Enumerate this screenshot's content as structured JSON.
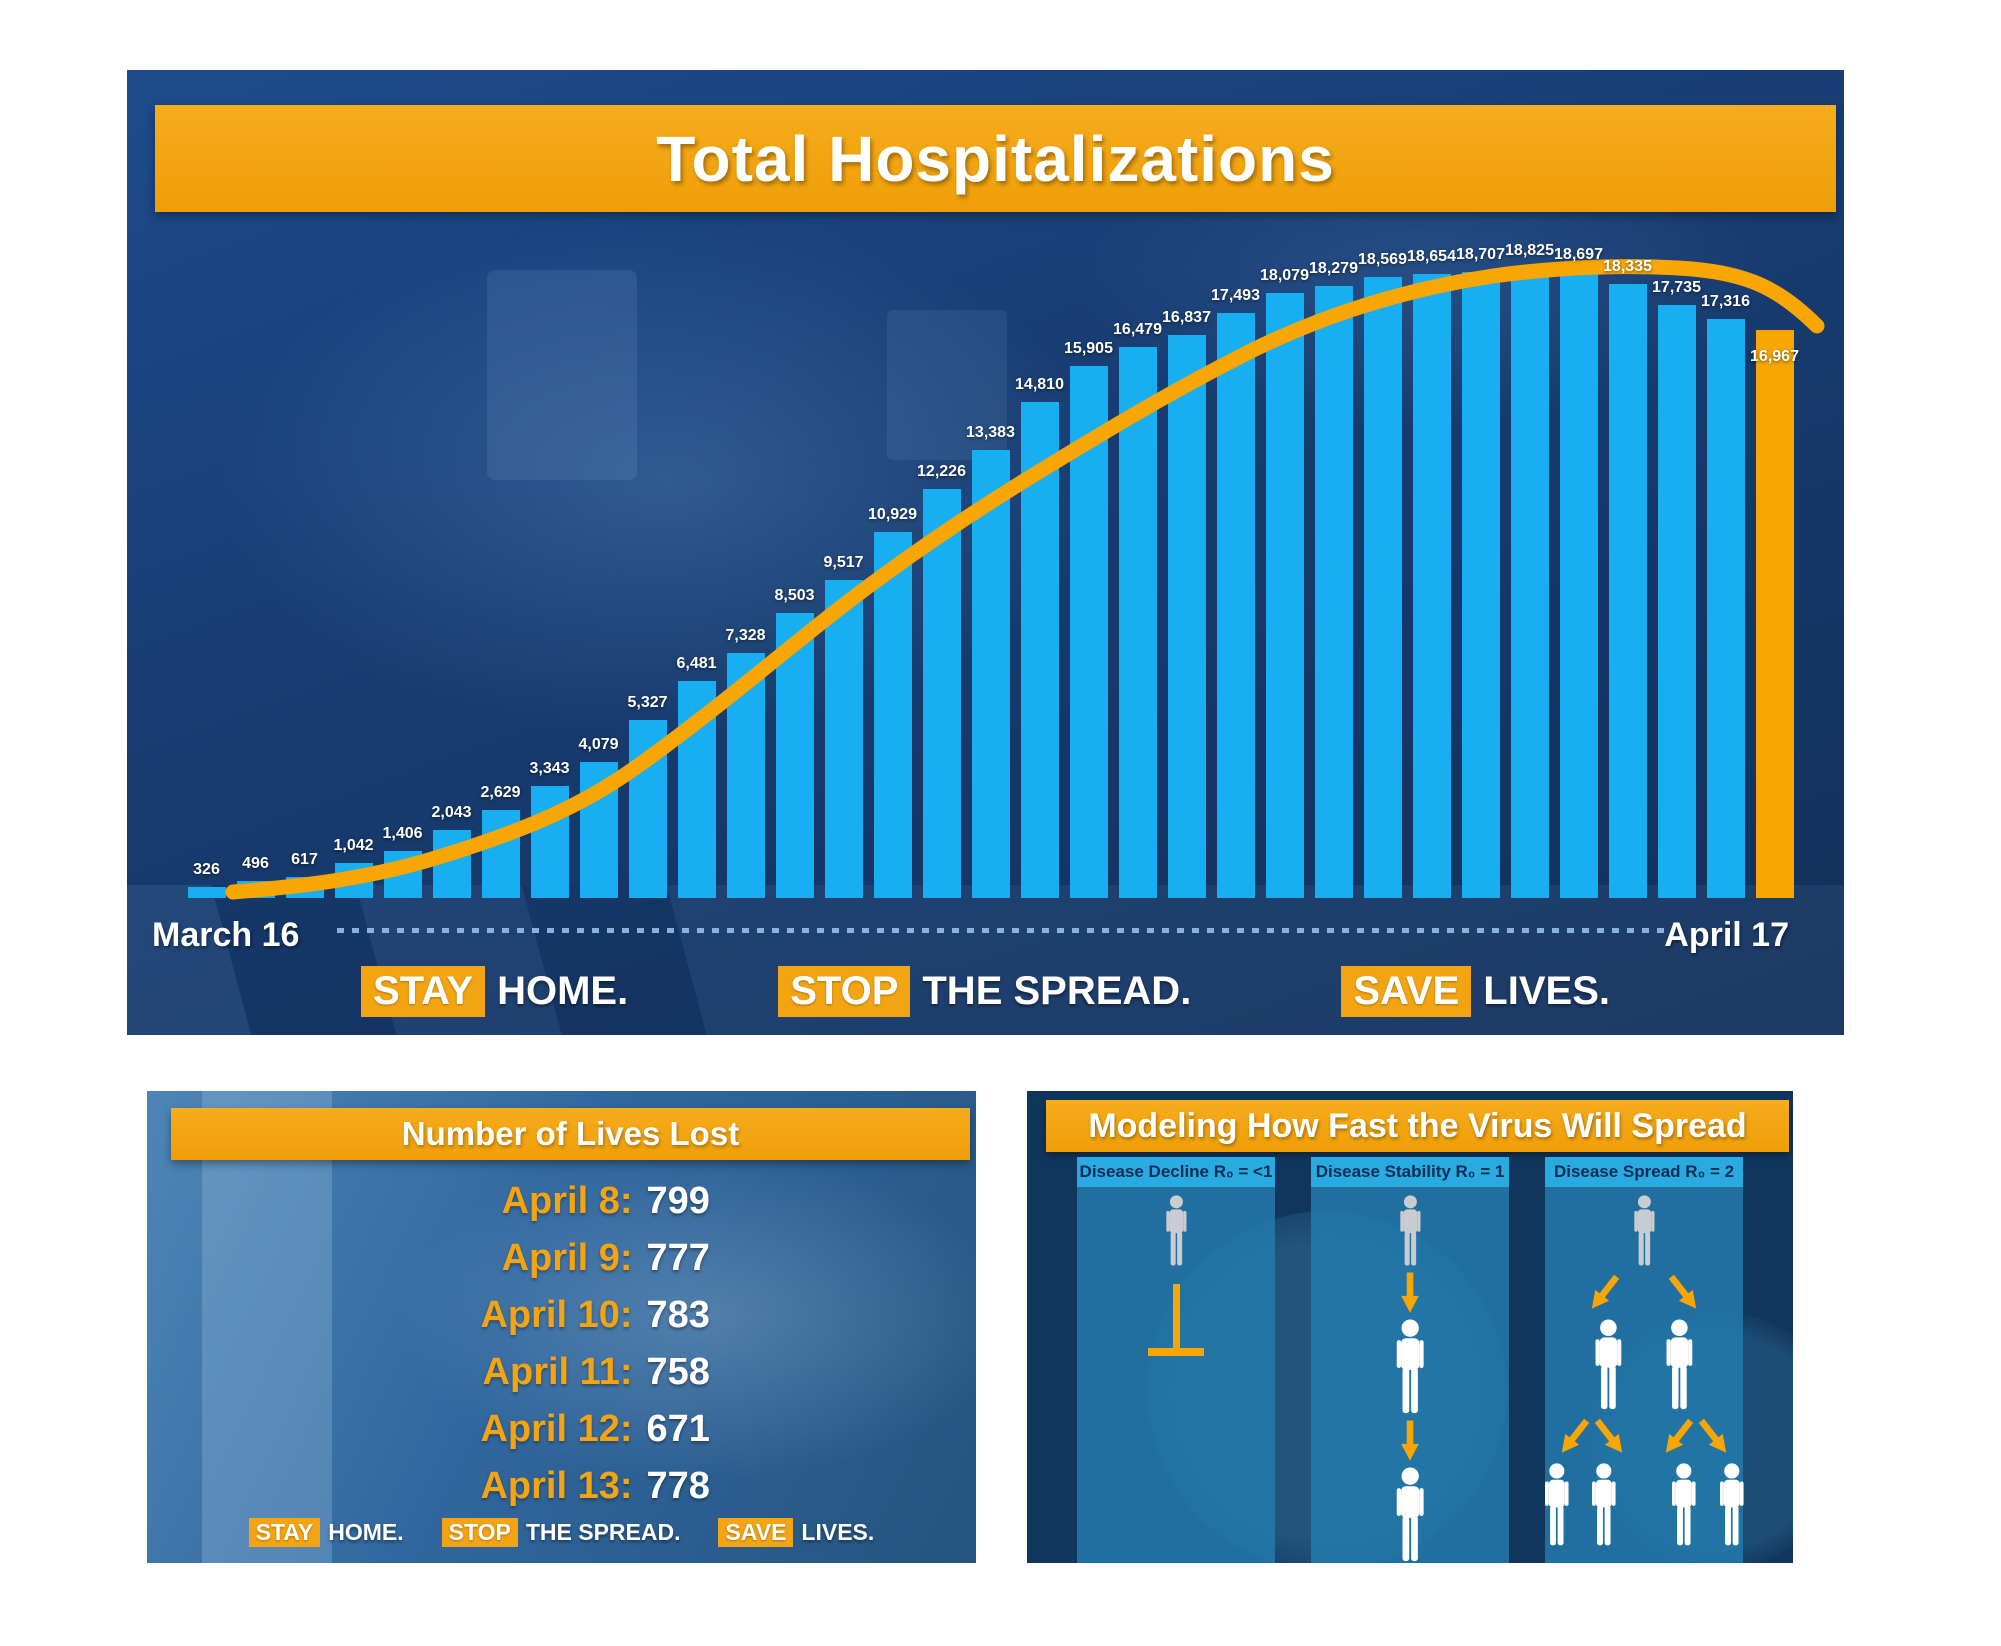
{
  "top_panel": {
    "title": "Total Hospitalizations",
    "x_start_label": "March 16",
    "x_end_label": "April 17"
  },
  "tagline": [
    {
      "highlight": "STAY",
      "rest": "HOME."
    },
    {
      "highlight": "STOP",
      "rest": "THE SPREAD."
    },
    {
      "highlight": "SAVE",
      "rest": "LIVES."
    }
  ],
  "lives_panel": {
    "title": "Number of Lives Lost"
  },
  "modeling_panel": {
    "title": "Modeling How Fast the Virus Will Spread"
  },
  "chart_data": [
    {
      "type": "bar",
      "title": "Total Hospitalizations",
      "x_axis": {
        "start": "March 16",
        "end": "April 17",
        "unit": "day"
      },
      "values": [
        326,
        496,
        617,
        1042,
        1406,
        2043,
        2629,
        3343,
        4079,
        5327,
        6481,
        7328,
        8503,
        9517,
        10929,
        12226,
        13383,
        14810,
        15905,
        16479,
        16837,
        17493,
        18079,
        18279,
        18569,
        18654,
        18707,
        18825,
        18697,
        18335,
        17735,
        17316,
        16967
      ],
      "ylim": [
        0,
        19000
      ],
      "bar_color": "#18AEF2",
      "highlighted_last_bar": true,
      "highlight_color": "#F9A602",
      "line_overlay": true,
      "line_color": "#F9A602",
      "grid": false,
      "legend": null,
      "annotation": "STAY HOME. STOP THE SPREAD. SAVE LIVES."
    },
    {
      "type": "table",
      "title": "Number of Lives Lost",
      "rows": [
        {
          "date": "April 8:",
          "value": "799"
        },
        {
          "date": "April 9:",
          "value": "777"
        },
        {
          "date": "April 10:",
          "value": "783"
        },
        {
          "date": "April 11:",
          "value": "758"
        },
        {
          "date": "April 12:",
          "value": "671"
        },
        {
          "date": "April 13:",
          "value": "778"
        }
      ],
      "annotation": "STAY HOME. STOP THE SPREAD. SAVE LIVES."
    },
    {
      "type": "diagram",
      "title": "Modeling How Fast the Virus Will Spread",
      "columns": [
        {
          "label": "Disease Decline R₀ = <1",
          "rows": [
            [
              "person-gray"
            ],
            [
              "terminator"
            ]
          ]
        },
        {
          "label": "Disease Stability R₀ = 1",
          "rows": [
            [
              "person-gray"
            ],
            [
              "arrow-down"
            ],
            [
              "person-white"
            ],
            [
              "arrow-down"
            ],
            [
              "person-white"
            ]
          ]
        },
        {
          "label": "Disease Spread R₀ = 2",
          "rows": [
            [
              "person-gray"
            ],
            [
              "arrow-down-left",
              "arrow-down-right"
            ],
            [
              "person-white",
              "person-white"
            ],
            [
              "arrow-down-left",
              "arrow-down-right",
              "arrow-down-left",
              "arrow-down-right"
            ],
            [
              "person-white",
              "person-white",
              "person-white",
              "person-white"
            ]
          ]
        }
      ]
    }
  ],
  "colors": {
    "banner_orange": "#F2A413",
    "bar_blue": "#18AEF2",
    "curve_orange": "#F9A602",
    "header_cyan": "#29ABE2",
    "panel_navy": "#16396B",
    "person_gray": "#C9CDD2",
    "person_white": "#FFFFFF"
  }
}
